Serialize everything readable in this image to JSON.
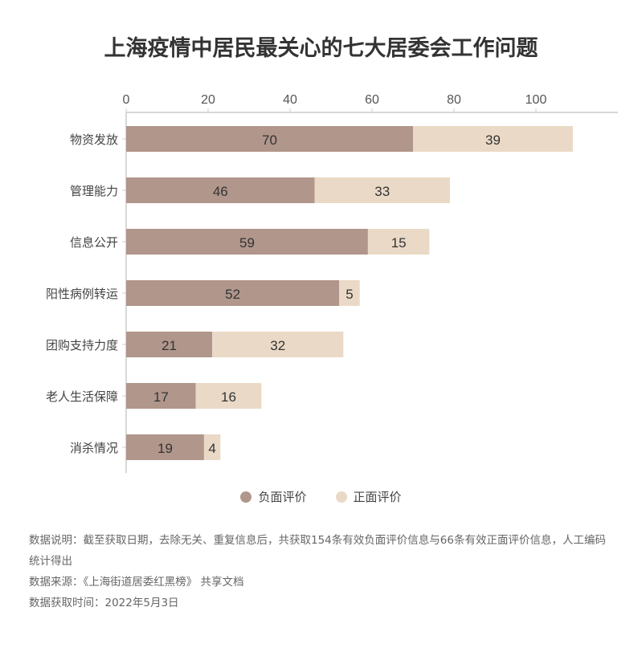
{
  "chart_data": {
    "type": "bar",
    "orientation": "horizontal",
    "stacked": true,
    "title": "上海疫情中居民最关心的七大居委会工作问题",
    "categories": [
      "物资发放",
      "管理能力",
      "信息公开",
      "阳性病例转运",
      "团购支持力度",
      "老人生活保障",
      "消杀情况"
    ],
    "series": [
      {
        "name": "负面评价",
        "values": [
          70,
          46,
          59,
          52,
          21,
          17,
          19
        ],
        "color": "#b0968b"
      },
      {
        "name": "正面评价",
        "values": [
          39,
          33,
          15,
          5,
          32,
          16,
          4
        ],
        "color": "#ead9c6"
      }
    ],
    "xlim": [
      0,
      120
    ],
    "xticks": [
      0,
      20,
      40,
      60,
      80,
      100
    ],
    "axis_position": "top",
    "grid": false,
    "legend_position": "bottom"
  },
  "notes": {
    "line1": "数据说明：截至获取日期，去除无关、重复信息后，共获取154条有效负面评价信息与66条有效正面评价信息，人工编码统计得出",
    "line2": "数据来源：《上海街道居委红黑榜》 共享文档",
    "line3": "数据获取时间：2022年5月3日"
  }
}
